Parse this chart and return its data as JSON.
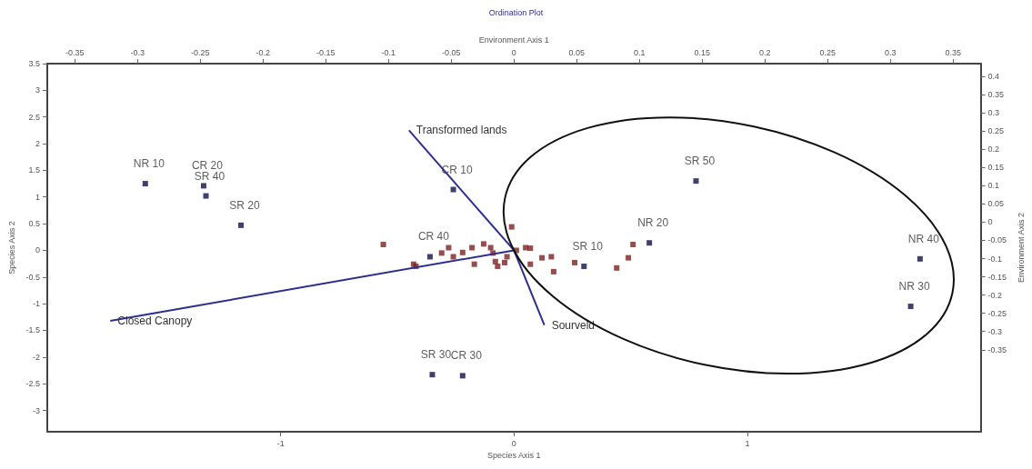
{
  "chart_data": {
    "type": "scatter",
    "title": "Ordination Plot",
    "xlabel": "Species Axis 1",
    "ylabel": "Species Axis 2",
    "x2label": "Environment Axis 1",
    "y2label": "Environment Axis 2",
    "xlim": [
      -2,
      2
    ],
    "xticks": [
      -1,
      0,
      1
    ],
    "ylim": [
      -3.4,
      3.5
    ],
    "yticks": [
      -3,
      -2.5,
      -2,
      -1.5,
      -1,
      -0.5,
      0,
      0.5,
      1,
      1.5,
      2,
      2.5,
      3,
      3.5
    ],
    "x2lim": [
      -0.372,
      0.372
    ],
    "x2ticks": [
      -0.35,
      -0.3,
      -0.25,
      -0.2,
      -0.15,
      -0.1,
      -0.05,
      0,
      0.05,
      0.1,
      0.15,
      0.2,
      0.25,
      0.3,
      0.35
    ],
    "y2lim": [
      -0.575,
      0.435
    ],
    "y2ticks": [
      -0.35,
      -0.3,
      -0.25,
      -0.2,
      -0.15,
      -0.1,
      -0.05,
      0,
      0.05,
      0.1,
      0.15,
      0.2,
      0.25,
      0.3,
      0.35,
      0.4
    ],
    "grid": false,
    "legend": false,
    "marker": "square",
    "series": [
      {
        "color": "#7b2020",
        "x": [
          -0.56,
          -0.43,
          -0.42,
          -0.31,
          -0.28,
          -0.26,
          -0.22,
          -0.18,
          -0.17,
          -0.13,
          -0.1,
          -0.09,
          -0.08,
          -0.07,
          -0.04,
          -0.03,
          -0.01,
          0.01,
          0.05,
          0.07,
          0.07,
          0.12,
          0.16,
          0.17,
          0.26,
          0.44,
          0.49,
          0.51
        ],
        "values": [
          0.11,
          -0.26,
          -0.3,
          -0.05,
          0.05,
          -0.12,
          -0.04,
          0.05,
          -0.26,
          0.12,
          0.05,
          -0.05,
          -0.21,
          -0.3,
          -0.23,
          -0.12,
          0.44,
          0,
          0.05,
          0.04,
          -0.26,
          -0.14,
          -0.12,
          -0.4,
          -0.23,
          -0.33,
          -0.14,
          0.11
        ]
      },
      {
        "color": "#10104a",
        "x": [
          -1.58,
          -1.33,
          -1.32,
          -1.17,
          -0.26,
          -0.36,
          0.3,
          0.58,
          0.78,
          1.74,
          1.7,
          -0.35,
          -0.22
        ],
        "values": [
          1.25,
          1.21,
          1.02,
          0.47,
          1.14,
          -0.12,
          -0.3,
          0.14,
          1.3,
          -0.16,
          -1.05,
          -2.33,
          -2.35
        ],
        "value_labels": [
          "NR 10",
          "CR 20",
          "SR 40",
          "SR 20",
          "CR 10",
          "CR 40",
          "SR 10",
          "NR 20",
          "SR 50",
          "NR 40",
          "NR 30",
          "SR 30",
          "CR 30"
        ]
      },
      {
        "type": "line",
        "name": "Transformed lands",
        "color": "#2e2e8c",
        "x": [
          0,
          -0.45
        ],
        "values": [
          0,
          2.25
        ],
        "marker": "none"
      },
      {
        "type": "line",
        "name": "Closed Canopy",
        "color": "#2e2e8c",
        "x": [
          0,
          -1.73
        ],
        "values": [
          0,
          -1.32
        ],
        "marker": "none"
      },
      {
        "type": "line",
        "name": "Sourveld",
        "color": "#2e2e8c",
        "x": [
          0,
          0.13
        ],
        "values": [
          0,
          -1.4
        ],
        "marker": "none"
      }
    ]
  }
}
